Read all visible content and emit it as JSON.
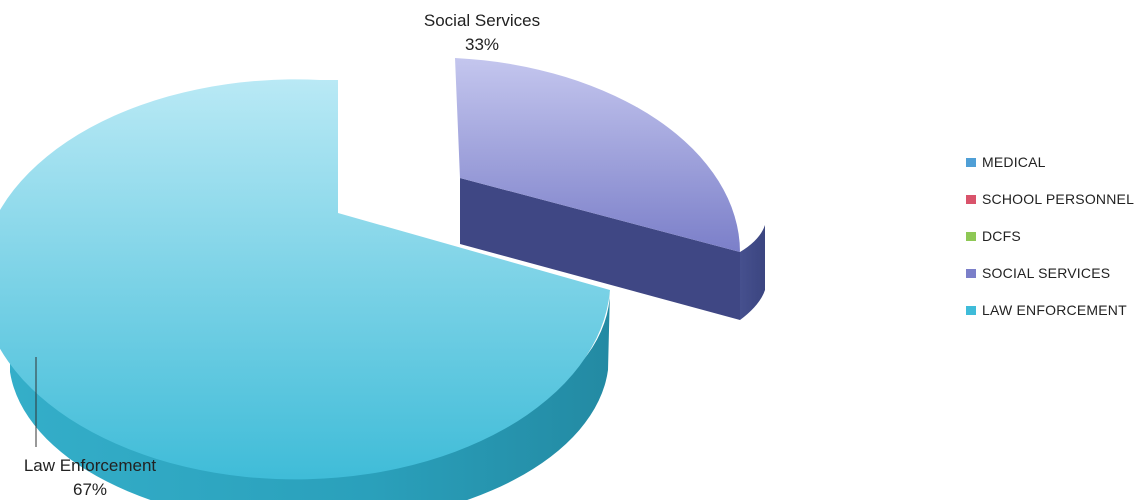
{
  "chart_data": {
    "type": "pie",
    "slices": [
      {
        "label": "Social Services",
        "value": 33,
        "percent_label": "33%",
        "color": "#8d8fd4"
      },
      {
        "label": "Law Enforcement",
        "value": 67,
        "percent_label": "67%",
        "color": "#4cc3dc"
      }
    ],
    "legend": {
      "placement": "right",
      "items": [
        {
          "label": "MEDICAL",
          "color": "#4f9fd6"
        },
        {
          "label": "SCHOOL PERSONNEL",
          "color": "#d9536b"
        },
        {
          "label": "DCFS",
          "color": "#8ec855"
        },
        {
          "label": "SOCIAL SERVICES",
          "color": "#7b7fc9"
        },
        {
          "label": "LAW ENFORCEMENT",
          "color": "#3fbcd9"
        }
      ]
    }
  }
}
